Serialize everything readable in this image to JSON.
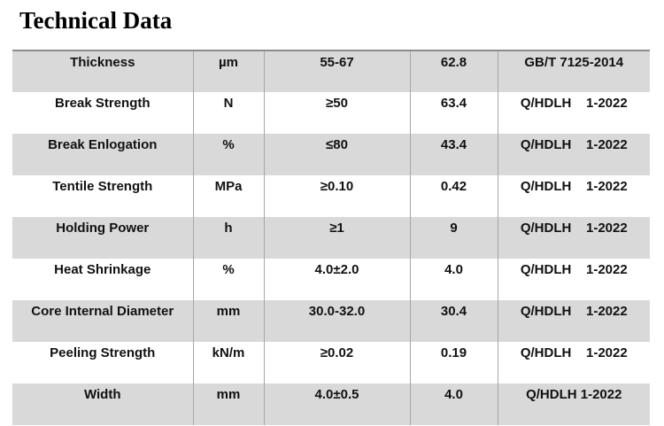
{
  "header": {
    "title": "Technical Data"
  },
  "table": {
    "rows": [
      [
        "Thickness",
        "µm",
        "55-67",
        "62.8",
        "GB/T 7125-2014"
      ],
      [
        "Break Strength",
        "N",
        "≥50",
        "63.4",
        "Q/HDLH    1-2022"
      ],
      [
        "Break Enlogation",
        "%",
        "≤80",
        "43.4",
        "Q/HDLH    1-2022"
      ],
      [
        "Tentile Strength",
        "MPa",
        "≥0.10",
        "0.42",
        "Q/HDLH    1-2022"
      ],
      [
        "Holding Power",
        "h",
        "≥1",
        "9",
        "Q/HDLH    1-2022"
      ],
      [
        "Heat Shrinkage",
        "%",
        "4.0±2.0",
        "4.0",
        "Q/HDLH    1-2022"
      ],
      [
        "Core Internal Diameter",
        "mm",
        "30.0-32.0",
        "30.4",
        "Q/HDLH    1-2022"
      ],
      [
        "Peeling Strength",
        "kN/m",
        "≥0.02",
        "0.19",
        "Q/HDLH    1-2022"
      ],
      [
        "Width",
        "mm",
        "4.0±0.5",
        "4.0",
        "Q/HDLH 1-2022"
      ]
    ]
  }
}
